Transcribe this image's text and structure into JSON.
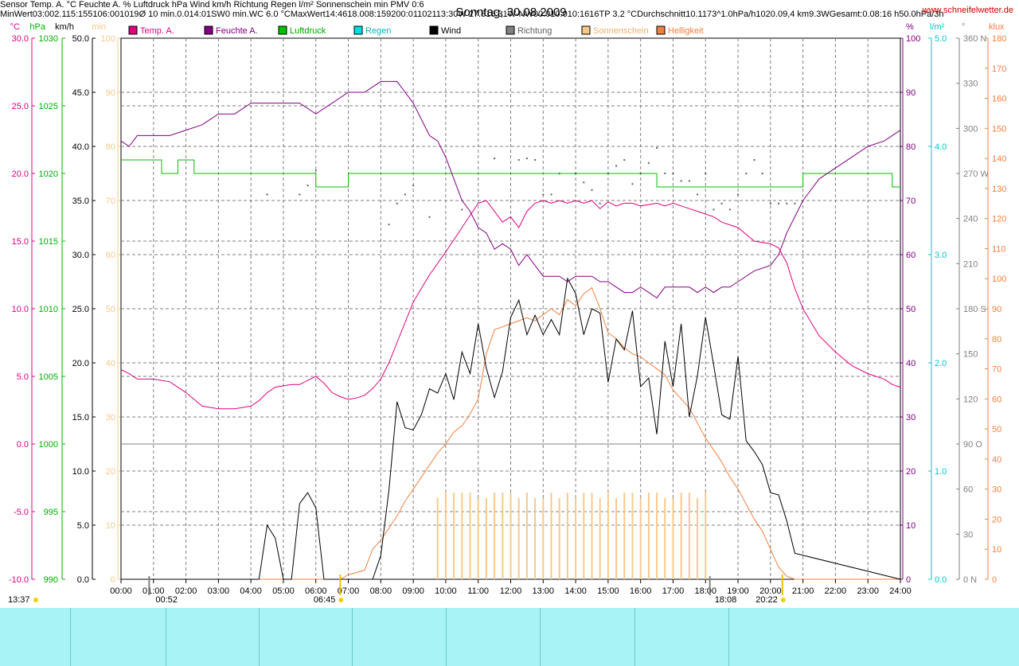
{
  "chart_data": {
    "type": "line",
    "title": "Sonntag, 30.08.2009",
    "site": "www.schneifelwetter.de",
    "legend": [
      {
        "name": "Temp. A.",
        "color": "#e0007f"
      },
      {
        "name": "Feuchte A.",
        "color": "#800080"
      },
      {
        "name": "Luftdruck",
        "color": "#00c000"
      },
      {
        "name": "Regen",
        "color": "#00e0e0"
      },
      {
        "name": "Wind",
        "color": "#000000"
      },
      {
        "name": "Richtung",
        "color": "#808080"
      },
      {
        "name": "Sonnenschein",
        "color": "#f7c98a"
      },
      {
        "name": "Helligkeit",
        "color": "#f08040"
      }
    ],
    "axes": {
      "temp": {
        "unit": "°C",
        "ticks": [
          "30.0",
          "25.0",
          "20.0",
          "15.0",
          "10.0",
          "5.0",
          "0.0",
          "-5.0",
          "-10.0"
        ],
        "range": [
          -10,
          30
        ],
        "color": "#e0007f"
      },
      "pressure": {
        "unit": "hPa",
        "ticks": [
          "1030",
          "1025",
          "1020",
          "1015",
          "1010",
          "1005",
          "1000",
          "995",
          "990"
        ],
        "range": [
          990,
          1030
        ],
        "color": "#00b000"
      },
      "wind": {
        "unit": "km/h",
        "ticks": [
          "50.0",
          "45.0",
          "40.0",
          "35.0",
          "30.0",
          "25.0",
          "20.0",
          "15.0",
          "10.0",
          "5.0",
          "0.0"
        ],
        "range": [
          0,
          50
        ],
        "color": "#000000"
      },
      "sunshine": {
        "unit": "min",
        "ticks": [
          "100",
          "90",
          "80",
          "70",
          "60",
          "50",
          "40",
          "30",
          "20",
          "10",
          "0"
        ],
        "range": [
          0,
          100
        ],
        "color": "#f7c98a"
      },
      "humidity": {
        "unit": "%",
        "ticks": [
          "100",
          "90",
          "80",
          "70",
          "60",
          "50",
          "40",
          "30",
          "20",
          "10",
          "0"
        ],
        "range": [
          0,
          100
        ],
        "color": "#800080"
      },
      "rain": {
        "unit": "l/m²",
        "ticks": [
          "5.0",
          "4.0",
          "3.0",
          "2.0",
          "1.0",
          "0.0"
        ],
        "range": [
          0,
          5
        ],
        "color": "#00c8c8"
      },
      "direction": {
        "unit": "°",
        "ticks": [
          "360 N",
          "330",
          "300",
          "270 W",
          "240",
          "210",
          "180 S",
          "150",
          "120",
          "90  O",
          "60",
          "30",
          "0   N"
        ],
        "range": [
          0,
          360
        ],
        "color": "#808080"
      },
      "brightness": {
        "unit": "klux",
        "ticks": [
          "180",
          "170",
          "160",
          "150",
          "140",
          "130",
          "120",
          "110",
          "100",
          "90",
          "80",
          "70",
          "60",
          "50",
          "40",
          "30",
          "20",
          "10",
          "0"
        ],
        "range": [
          0,
          180
        ],
        "color": "#f08040"
      },
      "x_ticks": [
        "00:00",
        "01:00",
        "02:00",
        "03:00",
        "04:00",
        "05:00",
        "06:00",
        "07:00",
        "08:00",
        "09:00",
        "10:00",
        "11:00",
        "12:00",
        "13:00",
        "14:00",
        "15:00",
        "16:00",
        "17:00",
        "18:00",
        "19:00",
        "20:00",
        "21:00",
        "22:00",
        "23:00",
        "24:00"
      ]
    },
    "markers": {
      "moonrise": "00:52",
      "sunrise": "06:45",
      "sunset": "20:22",
      "moonset": "18:08",
      "current_time": "13:37"
    },
    "series": {
      "temp": {
        "x": [
          0,
          0.25,
          0.5,
          1,
          1.5,
          2,
          2.5,
          3,
          3.5,
          4,
          4.25,
          4.5,
          4.75,
          5,
          5.25,
          5.5,
          5.75,
          6,
          6.25,
          6.5,
          6.75,
          7,
          7.25,
          7.5,
          7.75,
          8,
          8.25,
          8.5,
          8.75,
          9,
          9.5,
          10,
          10.5,
          11,
          11.25,
          11.5,
          11.75,
          12,
          12.25,
          12.5,
          12.75,
          13,
          13.25,
          13.5,
          13.75,
          14,
          14.25,
          14.5,
          14.75,
          15,
          15.25,
          15.5,
          15.75,
          16,
          16.25,
          16.5,
          16.75,
          17,
          17.25,
          17.5,
          17.75,
          18,
          18.25,
          18.5,
          18.75,
          19,
          19.5,
          20,
          20.25,
          20.5,
          20.75,
          21,
          21.5,
          22,
          22.5,
          23,
          23.5,
          23.75,
          24
        ],
        "y": [
          5.5,
          5.2,
          4.8,
          4.8,
          4.6,
          3.8,
          2.8,
          2.6,
          2.6,
          2.8,
          3.2,
          3.8,
          4.2,
          4.3,
          4.4,
          4.4,
          4.7,
          5.0,
          4.5,
          3.8,
          3.5,
          3.3,
          3.4,
          3.6,
          4.1,
          4.8,
          6.0,
          7.5,
          9.0,
          10.5,
          12.5,
          14.2,
          16.0,
          17.8,
          18.0,
          17.2,
          16.4,
          16.8,
          16.0,
          17.2,
          17.8,
          18.0,
          17.8,
          18.0,
          17.8,
          18.0,
          17.8,
          18.0,
          17.4,
          17.9,
          17.6,
          17.8,
          17.8,
          17.6,
          17.7,
          17.8,
          17.6,
          17.8,
          17.6,
          17.4,
          17.2,
          17.0,
          16.8,
          16.4,
          16.2,
          16.0,
          15.0,
          14.8,
          14.5,
          13.4,
          11.5,
          10.0,
          8.0,
          6.8,
          5.8,
          5.2,
          4.8,
          4.4,
          4.2
        ]
      },
      "humidity": {
        "x": [
          0,
          0.25,
          0.5,
          1,
          1.5,
          2,
          2.5,
          3,
          3.5,
          4,
          4.5,
          5,
          5.5,
          6,
          6.5,
          7,
          7.5,
          8,
          8.5,
          9,
          9.25,
          9.5,
          9.75,
          10,
          10.25,
          10.5,
          10.75,
          11,
          11.25,
          11.5,
          11.75,
          12,
          12.25,
          12.5,
          12.75,
          13,
          13.25,
          13.5,
          13.75,
          14,
          14.25,
          14.5,
          14.75,
          15,
          15.25,
          15.5,
          15.75,
          16,
          16.25,
          16.5,
          16.75,
          17,
          17.25,
          17.5,
          17.75,
          18,
          18.25,
          18.5,
          18.75,
          19,
          19.5,
          20,
          20.25,
          20.5,
          20.75,
          21,
          21.5,
          22,
          22.5,
          23,
          23.5,
          23.75,
          24
        ],
        "y": [
          81,
          80,
          82,
          82,
          82,
          83,
          84,
          86,
          86,
          88,
          88,
          88,
          88,
          86,
          88,
          90,
          90,
          92,
          92,
          88,
          85,
          82,
          81,
          78,
          74,
          70,
          68,
          65,
          64,
          61,
          62,
          61,
          58,
          60,
          58,
          56,
          56,
          56,
          55,
          56,
          56,
          56,
          55,
          55,
          54,
          53,
          53,
          54,
          53,
          52,
          54,
          54,
          54,
          54,
          53,
          54,
          53,
          54,
          54,
          55,
          57,
          58,
          60,
          64,
          67,
          70,
          74,
          76,
          78,
          80,
          81,
          82,
          83
        ]
      },
      "pressure": {
        "x": [
          0,
          0.5,
          1,
          1.25,
          1.5,
          1.75,
          2,
          2.25,
          2.5,
          3,
          3.5,
          4,
          4.5,
          5,
          5.5,
          5.75,
          6,
          6.5,
          6.75,
          7,
          8,
          9,
          10,
          11,
          12,
          13,
          14,
          15,
          16,
          16.25,
          16.5,
          17,
          18,
          19,
          20,
          20.25,
          21,
          22,
          23,
          23.25,
          23.5,
          23.75,
          24
        ],
        "y": [
          1021,
          1021,
          1021,
          1020,
          1020,
          1021,
          1021,
          1020,
          1020,
          1020,
          1020,
          1020,
          1020,
          1020,
          1020,
          1020,
          1019,
          1019,
          1019,
          1020,
          1020,
          1020,
          1020,
          1020,
          1020,
          1020,
          1020,
          1020,
          1020,
          1020,
          1019,
          1019,
          1019,
          1019,
          1019,
          1019,
          1020,
          1020,
          1020,
          1020,
          1020,
          1019,
          1019
        ]
      },
      "wind": {
        "x": [
          0,
          4.25,
          4.5,
          4.75,
          5,
          5.25,
          5.5,
          5.75,
          6,
          6.25,
          7.5,
          7.75,
          8,
          8.25,
          8.5,
          8.75,
          9,
          9.25,
          9.5,
          9.75,
          10,
          10.25,
          10.5,
          10.75,
          11,
          11.25,
          11.5,
          11.75,
          12,
          12.25,
          12.5,
          12.75,
          13,
          13.25,
          13.5,
          13.75,
          14,
          14.25,
          14.5,
          14.75,
          15,
          15.25,
          15.5,
          15.75,
          16,
          16.25,
          16.5,
          16.75,
          17,
          17.25,
          17.5,
          17.75,
          18,
          18.25,
          18.5,
          18.75,
          19,
          19.25,
          19.5,
          19.75,
          20,
          20.25,
          20.5,
          20.75,
          24
        ],
        "y": [
          0,
          0,
          5.0,
          3.8,
          0,
          0,
          7.0,
          8.0,
          6.6,
          0,
          0,
          0,
          2.2,
          8.2,
          16.4,
          14.0,
          13.8,
          15.2,
          17.6,
          17.2,
          19.0,
          16.6,
          21.0,
          19.0,
          23.6,
          19.5,
          16.8,
          19.2,
          24.2,
          25.8,
          22.6,
          24.4,
          22.6,
          24.0,
          22.6,
          27.8,
          26.4,
          22.6,
          25.0,
          24.6,
          18.2,
          22.2,
          21.2,
          24.8,
          17.8,
          18.6,
          13.4,
          22.0,
          17.8,
          23.6,
          15.0,
          18.8,
          24.2,
          19.8,
          15.2,
          14.8,
          20.6,
          12.8,
          11.8,
          10.6,
          8.0,
          7.8,
          5.4,
          2.4,
          0
        ]
      },
      "direction_dots": {
        "x": [
          4.5,
          5.5,
          5.75,
          6,
          8.25,
          8.5,
          8.75,
          9,
          9.5,
          10.5,
          11.5,
          12.25,
          12.5,
          12.75,
          13,
          13.25,
          13.5,
          14,
          14.25,
          14.5,
          14.75,
          15,
          15.25,
          15.5,
          15.75,
          16,
          16.25,
          16.5,
          16.75,
          17,
          17.25,
          17.5,
          17.75,
          18,
          18.25,
          18.5,
          18.75,
          19,
          19.25,
          19.5,
          19.75,
          20,
          20.25,
          20.5,
          20.75
        ],
        "y": [
          256,
          256,
          262,
          272,
          236,
          250,
          256,
          262,
          241,
          246,
          280,
          279,
          280,
          279,
          256,
          256,
          270,
          270,
          264,
          259,
          250,
          270,
          275,
          279,
          263,
          270,
          277,
          287,
          270,
          270,
          265,
          265,
          256,
          270,
          246,
          250,
          246,
          256,
          270,
          279,
          270,
          250,
          250,
          250,
          250
        ]
      },
      "sunshine": {
        "x": [
          9.75,
          10,
          10.25,
          10.5,
          10.75,
          11,
          11.25,
          11.5,
          11.75,
          12,
          12.25,
          12.5,
          12.75,
          13,
          13.25,
          13.5,
          13.75,
          14,
          14.25,
          14.5,
          14.75,
          15,
          15.25,
          15.5,
          15.75,
          16,
          16.25,
          16.5,
          16.75,
          17,
          17.25,
          17.5,
          17.75,
          18
        ],
        "y": [
          15,
          16,
          16,
          16,
          16,
          15,
          15,
          16,
          16,
          16,
          15,
          16,
          15,
          15,
          16,
          15,
          16,
          15,
          16,
          16,
          15,
          16,
          15,
          16,
          16,
          15,
          16,
          16,
          15,
          15,
          16,
          16,
          15,
          16
        ]
      },
      "brightness": {
        "x": [
          0,
          6.75,
          7,
          7.5,
          7.75,
          8,
          8.25,
          8.5,
          8.75,
          9,
          9.25,
          9.5,
          9.75,
          10,
          10.25,
          10.5,
          10.75,
          11,
          11.25,
          11.5,
          11.75,
          12,
          12.25,
          12.5,
          12.75,
          13,
          13.25,
          13.5,
          13.75,
          14,
          14.25,
          14.5,
          14.75,
          15,
          15.25,
          15.5,
          15.75,
          16,
          16.25,
          16.5,
          16.75,
          17,
          17.25,
          17.5,
          17.75,
          18,
          18.25,
          18.5,
          18.75,
          19,
          19.25,
          19.5,
          19.75,
          20,
          20.25,
          20.5,
          20.75,
          21,
          24
        ],
        "y": [
          0,
          0,
          1.5,
          3,
          10,
          13,
          17,
          21,
          26,
          30,
          34,
          38,
          42,
          45,
          49,
          51,
          55,
          60,
          75,
          83,
          84,
          85,
          86,
          87,
          86,
          88,
          90,
          88,
          93,
          91,
          95,
          97,
          90,
          82,
          80,
          77,
          75,
          74,
          72,
          70,
          68,
          63,
          60,
          57,
          52,
          47,
          43,
          39,
          34,
          30,
          25,
          20,
          16,
          10,
          4,
          1,
          0,
          0,
          0
        ]
      }
    }
  },
  "stats": {
    "headers": {
      "sensor": "Sensor",
      "temp": "Temp. A.",
      "temp_unit": "°C",
      "hum": "Feuchte A.",
      "hum_unit": "%",
      "press": "Luftdruck",
      "press_unit": "hPa",
      "wind": "Wind",
      "wind_unit": "km/h",
      "dir": "Richtung",
      "rain": "Regen",
      "rain_unit": "l/m²",
      "sun": "Sonnenschein min",
      "pmv": "PMV 0:6"
    },
    "rows": [
      {
        "label": "MinWert",
        "temp_t": "03:00",
        "temp_v": "2.1",
        "hum_t": "15:15",
        "hum_v": "51",
        "press_t": "06:00",
        "press_v": "1019",
        "wind_t": "Ø 10 min.",
        "wind_v": "0.0",
        "dir_t": "14:01",
        "dir_v": "SW",
        "rain_t": "0 min.",
        "rain_v": "",
        "sun_t": "",
        "sun_v": "",
        "pmv": "WC 6.0 °C"
      },
      {
        "label": "MaxWert",
        "temp_t": "14:46",
        "temp_v": "18.0",
        "hum_t": "08:15",
        "hum_v": "92",
        "press_t": "00:01",
        "press_v": "1021",
        "wind_t": "13:30",
        "wind_v": "W 27.8",
        "dir_t": "16:31",
        "dir_v": "W-NW",
        "rain_t": "00:01",
        "rain_v": "0.0",
        "sun_t": "10:16",
        "sun_v": "16",
        "pmv": "TP 3.2 °C"
      },
      {
        "label": "Durchschnitt",
        "temp_t": "",
        "temp_v": "10.11",
        "hum_t": "",
        "hum_v": "73",
        "press_t": "^1.0hPa/h",
        "press_v": "1020.0",
        "wind_t": "9,4 km",
        "wind_v": "9.3",
        "dir_t": "",
        "dir_v": "W",
        "rain_t": "Gesamt:",
        "rain_v": "0.0",
        "sun_t": "8:16 h",
        "sun_v": "5",
        "pmv": "0.0hPa/3h"
      }
    ]
  }
}
